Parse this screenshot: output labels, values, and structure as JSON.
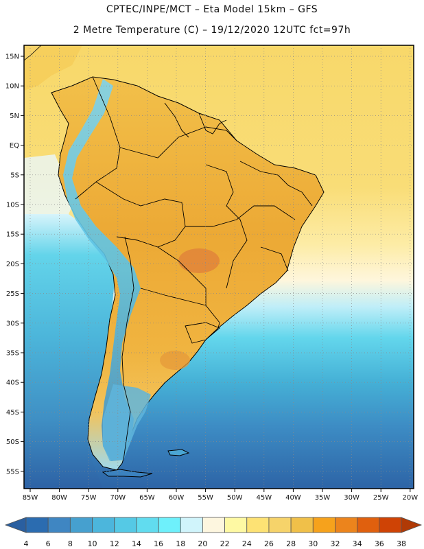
{
  "title": {
    "line1": "CPTEC/INPE/MCT –  Eta Model 15km – GFS",
    "line2": "2 Metre Temperature (C) – 19/12/2020 12UTC fct=97h"
  },
  "map": {
    "lat_labels": [
      "15N",
      "10N",
      "5N",
      "EQ",
      "5S",
      "10S",
      "15S",
      "20S",
      "25S",
      "30S",
      "35S",
      "40S",
      "45S",
      "50S",
      "55S"
    ],
    "lon_labels": [
      "85W",
      "80W",
      "75W",
      "70W",
      "65W",
      "60W",
      "55W",
      "50W",
      "45W",
      "40W",
      "35W",
      "30W",
      "25W",
      "20W"
    ]
  },
  "colorbar": {
    "labels": [
      "4",
      "6",
      "8",
      "10",
      "12",
      "14",
      "16",
      "18",
      "20",
      "22",
      "24",
      "26",
      "28",
      "30",
      "32",
      "34",
      "36",
      "38"
    ],
    "colors": [
      "#2b6cb0",
      "#3f86c2",
      "#46a0cf",
      "#4cb6dc",
      "#55c9e5",
      "#61dcef",
      "#6ef0fb",
      "#d0f4fb",
      "#fdf6df",
      "#fef9a3",
      "#fde274",
      "#f6d36a",
      "#f0c049",
      "#f6a21c",
      "#ec841c",
      "#e0600e",
      "#cf4305"
    ],
    "low_color": "#2a5fa0",
    "high_color": "#b03a06"
  },
  "colors": {
    "ocean_warm": "#f7d36a",
    "land": "#f0b340",
    "border": "#000000",
    "grid": "#8a8a8a"
  }
}
